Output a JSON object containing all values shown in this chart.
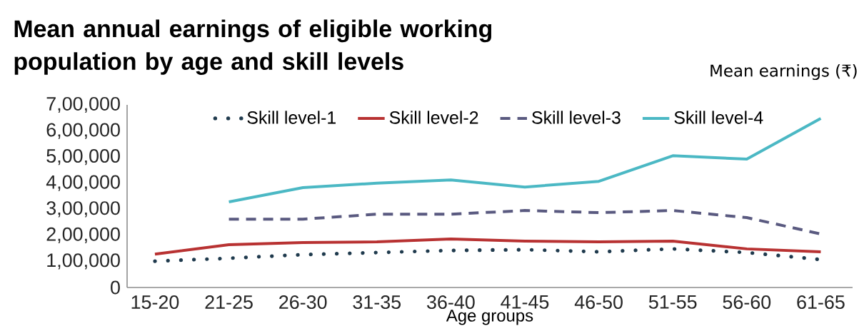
{
  "chart_data": {
    "type": "line",
    "title": "Mean annual earnings of eligible working population by age and skill levels",
    "ylabel": "Mean earnings (₹)",
    "xlabel": "Age groups",
    "categories": [
      "15-20",
      "21-25",
      "26-30",
      "31-35",
      "36-40",
      "41-45",
      "46-50",
      "51-55",
      "56-60",
      "61-65"
    ],
    "ylim": [
      0,
      700000
    ],
    "yticks": [
      0,
      {
        "value": 100000,
        "label": "1,00,000"
      },
      {
        "value": 200000,
        "label": "2,00,000"
      },
      {
        "value": 300000,
        "label": "3,00,000"
      },
      {
        "value": 400000,
        "label": "4,00,000"
      },
      {
        "value": 500000,
        "label": "5,00,000"
      },
      {
        "value": 600000,
        "label": "6,00,000"
      },
      {
        "value": 700000,
        "label": "7,00,000"
      }
    ],
    "legend": "top",
    "marker": "none",
    "grid": false,
    "series": [
      {
        "name": "Skill level-1",
        "color": "#1f3a4d",
        "line_style": "dotted",
        "values": [
          101000,
          112000,
          126000,
          134000,
          142000,
          145000,
          137000,
          148000,
          134000,
          107000
        ]
      },
      {
        "name": "Skill level-2",
        "color": "#b83232",
        "line_style": "solid",
        "values": [
          128000,
          164000,
          172000,
          175000,
          186000,
          178000,
          175000,
          178000,
          148000,
          137000
        ]
      },
      {
        "name": "Skill level-3",
        "color": "#5a5a80",
        "line_style": "dashed",
        "values": [
          null,
          262000,
          262000,
          281000,
          281000,
          295000,
          287000,
          295000,
          268000,
          205000
        ]
      },
      {
        "name": "Skill level-4",
        "color": "#4bb8c4",
        "line_style": "solid",
        "values": [
          null,
          328000,
          383000,
          400000,
          412000,
          385000,
          407000,
          505000,
          492000,
          648000
        ]
      }
    ]
  }
}
